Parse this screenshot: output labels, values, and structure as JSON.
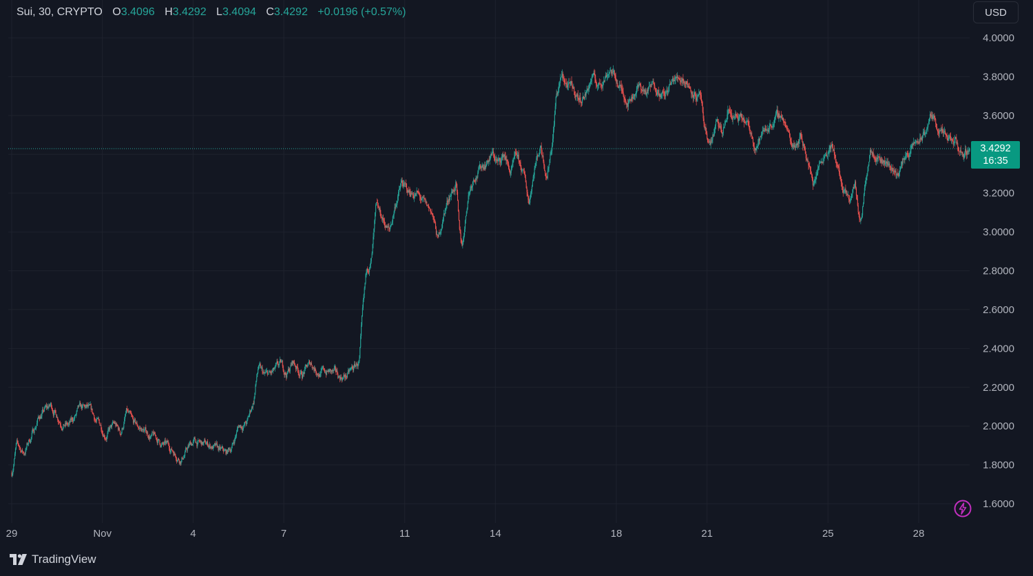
{
  "legend": {
    "symbol": "Sui, 30, CRYPTO",
    "o_label": "O",
    "o_value": "3.4096",
    "h_label": "H",
    "h_value": "3.4292",
    "l_label": "L",
    "l_value": "3.4094",
    "c_label": "C",
    "c_value": "3.4292",
    "change": "+0.0196 (+0.57%)"
  },
  "currency_button": "USD",
  "price_tag": {
    "price": "3.4292",
    "countdown": "16:35"
  },
  "brand": "TradingView",
  "colors": {
    "background": "#131722",
    "up": "#26a69a",
    "down": "#ef5350",
    "grid": "#1e222d",
    "bolt": "#c22fbf"
  },
  "icons": {
    "logo": "tradingview-logo-icon",
    "bolt": "lightning-bolt-icon"
  },
  "chart_data": {
    "type": "candlestick",
    "interval_minutes": 30,
    "x_unit": "day (Oct 29 .. Nov 29)",
    "ylim": [
      1.5,
      4.05
    ],
    "y_ticks": [
      1.6,
      1.8,
      2.0,
      2.2,
      2.4,
      2.6,
      2.8,
      3.0,
      3.2,
      3.4,
      3.6,
      3.8,
      4.0
    ],
    "y_tick_labels": [
      "1.6000",
      "1.8000",
      "2.0000",
      "2.2000",
      "2.4000",
      "2.6000",
      "2.8000",
      "3.0000",
      "3.2000",
      "3.4000",
      "3.6000",
      "3.8000",
      "4.0000"
    ],
    "x_ticks": [
      {
        "label": "29",
        "day": 29.0
      },
      {
        "label": "Nov",
        "day": 32.0
      },
      {
        "label": "4",
        "day": 35.0
      },
      {
        "label": "7",
        "day": 38.0
      },
      {
        "label": "11",
        "day": 42.0
      },
      {
        "label": "14",
        "day": 45.0
      },
      {
        "label": "18",
        "day": 49.0
      },
      {
        "label": "21",
        "day": 52.0
      },
      {
        "label": "25",
        "day": 56.0
      },
      {
        "label": "28",
        "day": 59.0
      }
    ],
    "last_price": 3.4292,
    "price_path": [
      [
        29.0,
        1.76
      ],
      [
        29.15,
        1.9
      ],
      [
        29.4,
        1.86
      ],
      [
        29.7,
        1.97
      ],
      [
        29.9,
        2.05
      ],
      [
        30.1,
        2.08
      ],
      [
        30.3,
        2.1
      ],
      [
        30.6,
        2.04
      ],
      [
        30.9,
        2.0
      ],
      [
        31.2,
        2.07
      ],
      [
        31.5,
        2.08
      ],
      [
        31.8,
        2.02
      ],
      [
        32.1,
        1.97
      ],
      [
        32.4,
        2.0
      ],
      [
        32.6,
        1.96
      ],
      [
        32.8,
        2.07
      ],
      [
        33.0,
        2.0
      ],
      [
        33.3,
        1.98
      ],
      [
        33.7,
        1.94
      ],
      [
        34.0,
        1.9
      ],
      [
        34.3,
        1.88
      ],
      [
        34.6,
        1.84
      ],
      [
        35.0,
        1.92
      ],
      [
        35.3,
        1.9
      ],
      [
        35.6,
        1.9
      ],
      [
        35.9,
        1.86
      ],
      [
        36.1,
        1.85
      ],
      [
        36.3,
        1.9
      ],
      [
        36.5,
        2.0
      ],
      [
        36.8,
        2.02
      ],
      [
        37.0,
        2.13
      ],
      [
        37.15,
        2.3
      ],
      [
        37.35,
        2.25
      ],
      [
        37.6,
        2.26
      ],
      [
        37.9,
        2.3
      ],
      [
        38.1,
        2.27
      ],
      [
        38.3,
        2.33
      ],
      [
        38.6,
        2.27
      ],
      [
        38.9,
        2.32
      ],
      [
        39.2,
        2.28
      ],
      [
        39.5,
        2.28
      ],
      [
        39.8,
        2.25
      ],
      [
        40.1,
        2.26
      ],
      [
        40.3,
        2.29
      ],
      [
        40.5,
        2.33
      ],
      [
        40.6,
        2.55
      ],
      [
        40.75,
        2.8
      ],
      [
        40.9,
        2.85
      ],
      [
        41.05,
        3.1
      ],
      [
        41.3,
        3.05
      ],
      [
        41.5,
        3.0
      ],
      [
        41.7,
        3.15
      ],
      [
        41.9,
        3.25
      ],
      [
        42.1,
        3.2
      ],
      [
        42.4,
        3.2
      ],
      [
        42.7,
        3.12
      ],
      [
        42.9,
        3.1
      ],
      [
        43.1,
        2.95
      ],
      [
        43.3,
        3.1
      ],
      [
        43.5,
        3.2
      ],
      [
        43.7,
        3.25
      ],
      [
        43.8,
        3.0
      ],
      [
        43.9,
        2.92
      ],
      [
        44.1,
        3.2
      ],
      [
        44.3,
        3.3
      ],
      [
        44.6,
        3.35
      ],
      [
        44.9,
        3.4
      ],
      [
        45.1,
        3.35
      ],
      [
        45.3,
        3.4
      ],
      [
        45.5,
        3.3
      ],
      [
        45.7,
        3.38
      ],
      [
        45.9,
        3.3
      ],
      [
        46.0,
        3.25
      ],
      [
        46.1,
        3.15
      ],
      [
        46.3,
        3.35
      ],
      [
        46.5,
        3.45
      ],
      [
        46.7,
        3.3
      ],
      [
        46.9,
        3.5
      ],
      [
        47.0,
        3.7
      ],
      [
        47.2,
        3.8
      ],
      [
        47.4,
        3.75
      ],
      [
        47.6,
        3.72
      ],
      [
        47.8,
        3.68
      ],
      [
        48.0,
        3.72
      ],
      [
        48.2,
        3.8
      ],
      [
        48.4,
        3.75
      ],
      [
        48.6,
        3.8
      ],
      [
        48.8,
        3.85
      ],
      [
        49.0,
        3.78
      ],
      [
        49.2,
        3.72
      ],
      [
        49.4,
        3.68
      ],
      [
        49.7,
        3.75
      ],
      [
        50.0,
        3.72
      ],
      [
        50.3,
        3.76
      ],
      [
        50.6,
        3.7
      ],
      [
        50.9,
        3.78
      ],
      [
        51.2,
        3.8
      ],
      [
        51.5,
        3.74
      ],
      [
        51.8,
        3.68
      ],
      [
        51.9,
        3.5
      ],
      [
        52.1,
        3.45
      ],
      [
        52.3,
        3.55
      ],
      [
        52.5,
        3.5
      ],
      [
        52.7,
        3.62
      ],
      [
        53.0,
        3.58
      ],
      [
        53.3,
        3.55
      ],
      [
        53.6,
        3.45
      ],
      [
        53.9,
        3.52
      ],
      [
        54.2,
        3.58
      ],
      [
        54.5,
        3.6
      ],
      [
        54.8,
        3.45
      ],
      [
        55.1,
        3.5
      ],
      [
        55.3,
        3.4
      ],
      [
        55.5,
        3.25
      ],
      [
        55.7,
        3.35
      ],
      [
        55.9,
        3.42
      ],
      [
        56.1,
        3.45
      ],
      [
        56.3,
        3.35
      ],
      [
        56.5,
        3.2
      ],
      [
        56.7,
        3.15
      ],
      [
        56.9,
        3.25
      ],
      [
        57.0,
        3.1
      ],
      [
        57.1,
        3.05
      ],
      [
        57.2,
        3.2
      ],
      [
        57.4,
        3.45
      ],
      [
        57.7,
        3.4
      ],
      [
        58.0,
        3.35
      ],
      [
        58.3,
        3.3
      ],
      [
        58.6,
        3.4
      ],
      [
        58.9,
        3.45
      ],
      [
        59.2,
        3.5
      ],
      [
        59.4,
        3.6
      ],
      [
        59.6,
        3.55
      ],
      [
        59.9,
        3.47
      ],
      [
        60.2,
        3.45
      ],
      [
        60.5,
        3.4
      ],
      [
        60.7,
        3.43
      ]
    ]
  }
}
